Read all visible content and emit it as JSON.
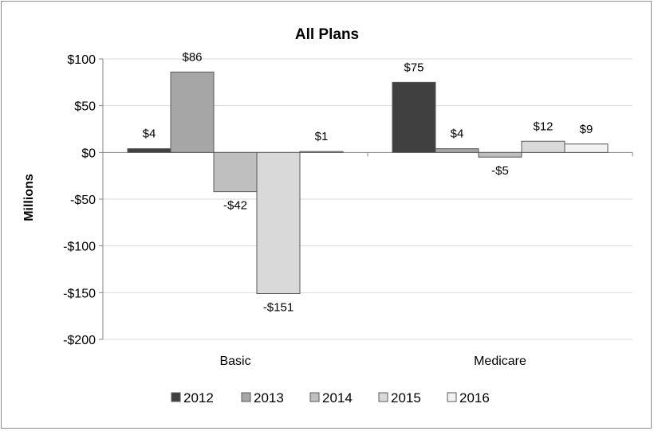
{
  "chart_data": {
    "type": "bar",
    "title": "All Plans",
    "ylabel": "Millions",
    "xlabel": "",
    "categories": [
      "Basic",
      "Medicare"
    ],
    "ylim": [
      -200,
      100
    ],
    "yticks": [
      100,
      50,
      0,
      -50,
      -100,
      -150,
      -200
    ],
    "ytick_labels": [
      "$100",
      "$50",
      "$0",
      "-$50",
      "-$100",
      "-$150",
      "-$200"
    ],
    "gridlines": true,
    "legend_position": "bottom",
    "series": [
      {
        "name": "2012",
        "values": [
          4,
          75
        ],
        "labels": [
          "$4",
          "$75"
        ],
        "color": "#404040"
      },
      {
        "name": "2013",
        "values": [
          86,
          4
        ],
        "labels": [
          "$86",
          "$4"
        ],
        "color": "#a6a6a6"
      },
      {
        "name": "2014",
        "values": [
          -42,
          -5
        ],
        "labels": [
          "-$42",
          "-$5"
        ],
        "color": "#bfbfbf"
      },
      {
        "name": "2015",
        "values": [
          -151,
          12
        ],
        "labels": [
          "-$151",
          "$12"
        ],
        "color": "#d9d9d9"
      },
      {
        "name": "2016",
        "values": [
          1,
          9
        ],
        "labels": [
          "$1",
          "$9"
        ],
        "color": "#f2f2f2"
      }
    ]
  }
}
